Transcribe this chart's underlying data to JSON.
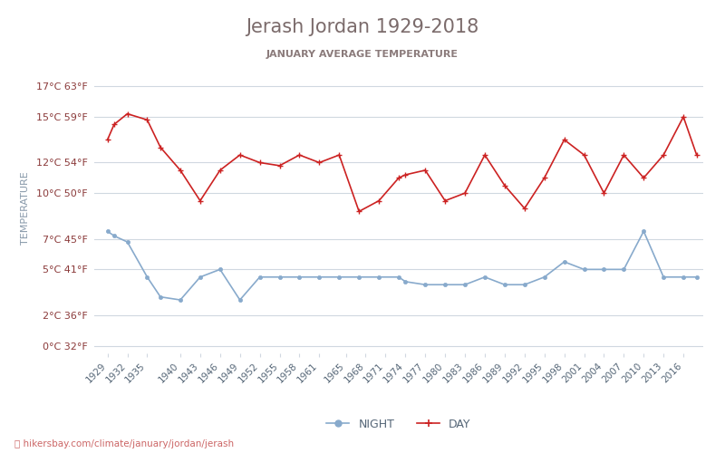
{
  "title": "Jerash Jordan 1929-2018",
  "subtitle": "JANUARY AVERAGE TEMPERATURE",
  "ylabel": "TEMPERATURE",
  "footer": "hikersbay.com/climate/january/jordan/jerash",
  "yticks_c": [
    0,
    2,
    5,
    7,
    10,
    12,
    15,
    17
  ],
  "yticks_f": [
    32,
    36,
    41,
    45,
    50,
    54,
    59,
    63
  ],
  "xticks": [
    1929,
    1932,
    1935,
    1940,
    1943,
    1946,
    1949,
    1952,
    1955,
    1958,
    1961,
    1965,
    1968,
    1971,
    1974,
    1977,
    1980,
    1983,
    1986,
    1989,
    1992,
    1995,
    1998,
    2001,
    2004,
    2007,
    2010,
    2013,
    2016
  ],
  "title_color": "#7b6b6b",
  "subtitle_color": "#8b7b7b",
  "ylabel_color": "#8899aa",
  "tick_color": "#8b3a3a",
  "grid_color": "#d0d8e0",
  "day_color": "#cc2222",
  "night_color": "#88aacc",
  "bg_color": "#ffffff",
  "footer_color": "#cc6666",
  "known_years": [
    1929,
    1930,
    1932,
    1935,
    1937,
    1940,
    1943,
    1946,
    1949,
    1952,
    1955,
    1958,
    1961,
    1964,
    1967,
    1970,
    1973,
    1974,
    1977,
    1980,
    1983,
    1986,
    1989,
    1992,
    1995,
    1998,
    2001,
    2004,
    2007,
    2010,
    2013,
    2016,
    2018
  ],
  "day_raw": [
    13.5,
    14.5,
    15.2,
    14.8,
    13.0,
    11.5,
    9.5,
    11.5,
    12.5,
    12.0,
    11.8,
    12.5,
    12.0,
    12.5,
    8.8,
    9.5,
    11.0,
    11.2,
    11.5,
    9.5,
    10.0,
    12.5,
    10.5,
    9.0,
    11.0,
    13.5,
    12.5,
    10.0,
    12.5,
    11.0,
    12.5,
    15.0,
    12.5
  ],
  "night_raw": [
    7.5,
    7.2,
    6.8,
    4.5,
    3.2,
    3.0,
    4.5,
    5.0,
    3.0,
    4.5,
    4.5,
    4.5,
    4.5,
    4.5,
    4.5,
    4.5,
    4.5,
    4.2,
    4.0,
    4.0,
    4.0,
    4.5,
    4.0,
    4.0,
    4.5,
    5.5,
    5.0,
    5.0,
    5.0,
    7.5,
    4.5,
    4.5,
    4.5
  ]
}
